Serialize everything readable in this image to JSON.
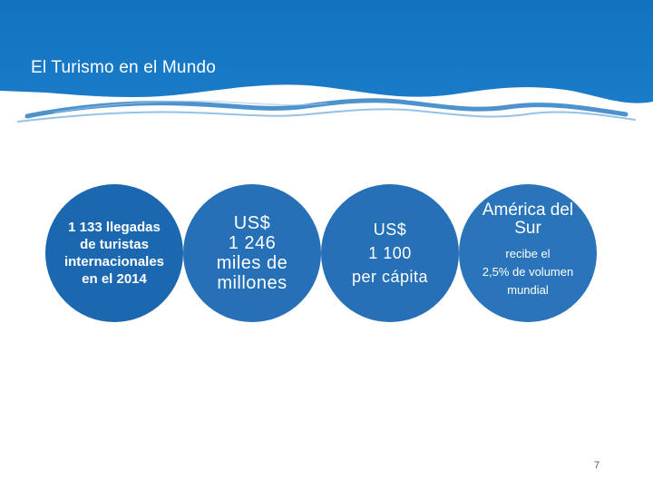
{
  "slide": {
    "title": "El Turismo en el Mundo",
    "page_number": "7"
  },
  "stats": [
    {
      "lines": [
        "1 133 llegadas",
        "de turistas",
        "internacionales",
        "en el 2014"
      ]
    },
    {
      "lines": [
        "US$",
        "1 246",
        "miles de",
        "millones"
      ]
    },
    {
      "lines": [
        "US$",
        "1 100",
        "per cápita"
      ]
    },
    {
      "head_lines": [
        "América del",
        "Sur"
      ],
      "sub_lines": [
        "recibe el",
        "2,5% de volumen",
        "mundial"
      ]
    }
  ],
  "colors": {
    "header_blue": "#1273bf",
    "circle_blue": "#2570b6",
    "wave_blue": "#2f7fc4",
    "text": "#ffffff"
  }
}
